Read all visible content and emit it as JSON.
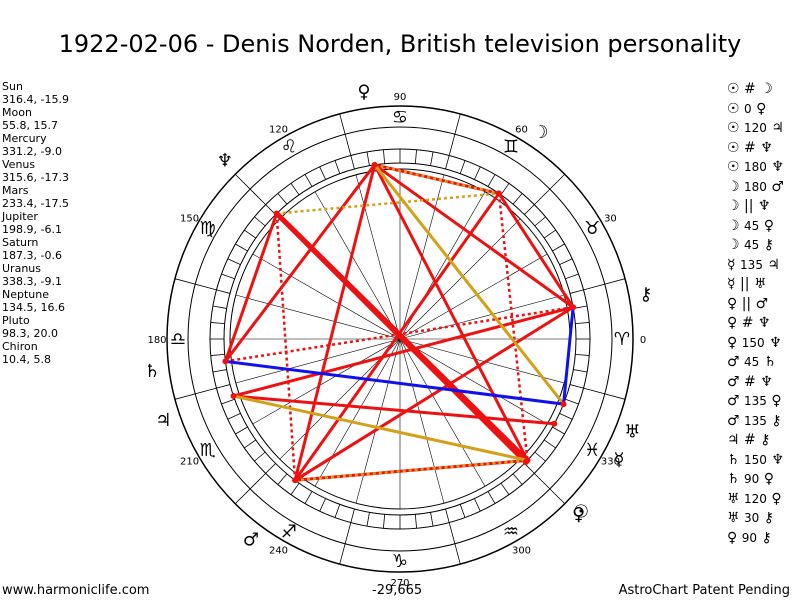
{
  "title": "1922-02-06 - Denis Norden, British television personality",
  "planets": [
    {
      "name": "Sun",
      "coords": "316.4, -15.9"
    },
    {
      "name": "Moon",
      "coords": "55.8, 15.7"
    },
    {
      "name": "Mercury",
      "coords": "331.2, -9.0"
    },
    {
      "name": "Venus",
      "coords": "315.6, -17.3"
    },
    {
      "name": "Mars",
      "coords": "233.4, -17.5"
    },
    {
      "name": "Jupiter",
      "coords": "198.9, -6.1"
    },
    {
      "name": "Saturn",
      "coords": "187.3, -0.6"
    },
    {
      "name": "Uranus",
      "coords": "338.3, -9.1"
    },
    {
      "name": "Neptune",
      "coords": "134.5, 16.6"
    },
    {
      "name": "Pluto",
      "coords": "98.3, 20.0"
    },
    {
      "name": "Chiron",
      "coords": "10.4, 5.8"
    }
  ],
  "aspects": [
    {
      "p1": "☉",
      "asp": "#",
      "num": "",
      "p2": "☽"
    },
    {
      "p1": "☉",
      "asp": "",
      "num": "0",
      "p2": "♀"
    },
    {
      "p1": "☉",
      "asp": "",
      "num": "120",
      "p2": "♃"
    },
    {
      "p1": "☉",
      "asp": "#",
      "num": "",
      "p2": "♆"
    },
    {
      "p1": "☉",
      "asp": "",
      "num": "180",
      "p2": "♆"
    },
    {
      "p1": "☽",
      "asp": "",
      "num": "180",
      "p2": "♂"
    },
    {
      "p1": "☽",
      "asp": "||",
      "num": "",
      "p2": "♆"
    },
    {
      "p1": "☽",
      "asp": "",
      "num": "45",
      "p2": "♀"
    },
    {
      "p1": "☽",
      "asp": "",
      "num": "45",
      "p2": "⚷"
    },
    {
      "p1": "☿",
      "asp": "",
      "num": "135",
      "p2": "♃"
    },
    {
      "p1": "☿",
      "asp": "||",
      "num": "",
      "p2": "♅"
    },
    {
      "p1": "♀",
      "asp": "||",
      "num": "",
      "p2": "♂"
    },
    {
      "p1": "♀",
      "asp": "#",
      "num": "",
      "p2": "♆"
    },
    {
      "p1": "♀",
      "asp": "",
      "num": "150",
      "p2": "♆"
    },
    {
      "p1": "♂",
      "asp": "",
      "num": "45",
      "p2": "♄"
    },
    {
      "p1": "♂",
      "asp": "#",
      "num": "",
      "p2": "♆"
    },
    {
      "p1": "♂",
      "asp": "",
      "num": "135",
      "p2": "♀"
    },
    {
      "p1": "♂",
      "asp": "",
      "num": "135",
      "p2": "⚷"
    },
    {
      "p1": "♃",
      "asp": "#",
      "num": "",
      "p2": "⚷"
    },
    {
      "p1": "♄",
      "asp": "",
      "num": "150",
      "p2": "♆"
    },
    {
      "p1": "♄",
      "asp": "",
      "num": "90",
      "p2": "♀"
    },
    {
      "p1": "♅",
      "asp": "",
      "num": "120",
      "p2": "♀"
    },
    {
      "p1": "♅",
      "asp": "",
      "num": "30",
      "p2": "⚷"
    },
    {
      "p1": "♀",
      "asp": "",
      "num": "90",
      "p2": "⚷"
    }
  ],
  "wheel": {
    "degree_labels": [
      "0",
      "30",
      "60",
      "90",
      "120",
      "150",
      "180",
      "210",
      "240",
      "270",
      "300",
      "330"
    ],
    "sign_glyphs": [
      "♈",
      "♉",
      "♊",
      "♋",
      "♌",
      "♍",
      "♎",
      "♏",
      "♐",
      "♑",
      "♒",
      "♓"
    ],
    "bottom_value": "-29,665"
  },
  "chart_bodies": [
    {
      "label": "Sun",
      "glyph": "☉",
      "longitude": 316.4
    },
    {
      "label": "Moon",
      "glyph": "☽",
      "longitude": 55.8
    },
    {
      "label": "Mercury",
      "glyph": "☿",
      "longitude": 331.2
    },
    {
      "label": "Venus",
      "glyph": "♀",
      "longitude": 315.6
    },
    {
      "label": "Mars",
      "glyph": "♂",
      "longitude": 233.4
    },
    {
      "label": "Jupiter",
      "glyph": "♃",
      "longitude": 198.9
    },
    {
      "label": "Saturn",
      "glyph": "♄",
      "longitude": 187.3
    },
    {
      "label": "Uranus",
      "glyph": "♅",
      "longitude": 338.3
    },
    {
      "label": "Neptune",
      "glyph": "♆",
      "longitude": 134.5
    },
    {
      "label": "Pluto",
      "glyph": "♀",
      "longitude": 98.3
    },
    {
      "label": "Chiron",
      "glyph": "⚷",
      "longitude": 10.4
    }
  ],
  "aspect_lines": [
    {
      "a": "Sun",
      "b": "Neptune",
      "color": "#ee1111",
      "style": "solid",
      "weight": "heavy"
    },
    {
      "a": "Venus",
      "b": "Neptune",
      "color": "#ee1111",
      "style": "solid",
      "weight": "heavy"
    },
    {
      "a": "Sun",
      "b": "Pluto",
      "color": "#ee1111",
      "style": "solid",
      "weight": "normal"
    },
    {
      "a": "Pluto",
      "b": "Mars",
      "color": "#ee1111",
      "style": "solid",
      "weight": "normal"
    },
    {
      "a": "Pluto",
      "b": "Moon",
      "color": "#ee1111",
      "style": "solid",
      "weight": "normal"
    },
    {
      "a": "Pluto",
      "b": "Chiron",
      "color": "#ee1111",
      "style": "solid",
      "weight": "normal"
    },
    {
      "a": "Moon",
      "b": "Chiron",
      "color": "#ee1111",
      "style": "solid",
      "weight": "normal"
    },
    {
      "a": "Moon",
      "b": "Mars",
      "color": "#ee1111",
      "style": "solid",
      "weight": "normal"
    },
    {
      "a": "Mars",
      "b": "Chiron",
      "color": "#ee1111",
      "style": "solid",
      "weight": "normal"
    },
    {
      "a": "Saturn",
      "b": "Neptune",
      "color": "#ee1111",
      "style": "solid",
      "weight": "normal"
    },
    {
      "a": "Saturn",
      "b": "Pluto",
      "color": "#ee1111",
      "style": "solid",
      "weight": "normal"
    },
    {
      "a": "Jupiter",
      "b": "Chiron",
      "color": "#ee1111",
      "style": "solid",
      "weight": "normal"
    },
    {
      "a": "Jupiter",
      "b": "Mercury",
      "color": "#ee1111",
      "style": "solid",
      "weight": "normal"
    },
    {
      "a": "Mars",
      "b": "Sun",
      "color": "#ee1111",
      "style": "solid",
      "weight": "normal"
    },
    {
      "a": "Mars",
      "b": "Neptune",
      "color": "#ee1111",
      "style": "dotted",
      "weight": "normal"
    },
    {
      "a": "Moon",
      "b": "Sun",
      "color": "#ee1111",
      "style": "dotted",
      "weight": "normal"
    },
    {
      "a": "Neptune",
      "b": "Sun",
      "color": "#ee1111",
      "style": "dotted",
      "weight": "normal"
    },
    {
      "a": "Saturn",
      "b": "Chiron",
      "color": "#ee1111",
      "style": "dotted",
      "weight": "normal"
    },
    {
      "a": "Pluto",
      "b": "Uranus",
      "color": "#d4a017",
      "style": "solid",
      "weight": "normal"
    },
    {
      "a": "Jupiter",
      "b": "Sun",
      "color": "#d4a017",
      "style": "solid",
      "weight": "normal"
    },
    {
      "a": "Pluto",
      "b": "Moon",
      "color": "#d4a017",
      "style": "dotted",
      "weight": "normal"
    },
    {
      "a": "Neptune",
      "b": "Moon",
      "color": "#d4a017",
      "style": "dotted",
      "weight": "normal"
    },
    {
      "a": "Mars",
      "b": "Sun",
      "color": "#d4a017",
      "style": "dotted",
      "weight": "normal"
    },
    {
      "a": "Saturn",
      "b": "Uranus",
      "color": "#1111ee",
      "style": "solid",
      "weight": "normal"
    },
    {
      "a": "Uranus",
      "b": "Chiron",
      "color": "#1111ee",
      "style": "solid",
      "weight": "normal"
    }
  ],
  "footer": {
    "left": "www.harmoniclife.com",
    "right": "AstroChart Patent Pending"
  }
}
